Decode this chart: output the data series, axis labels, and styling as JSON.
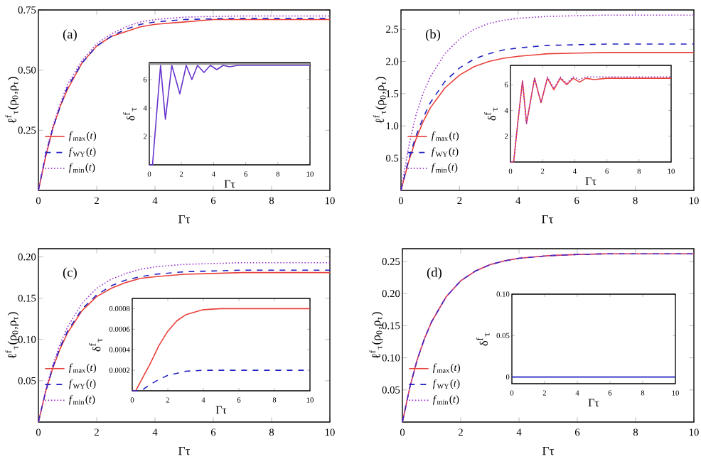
{
  "chart_data": [
    {
      "type": "line",
      "xlabel": "Γτ",
      "ylabel": "ℓ$^{f}$$_{τ}$(ρ$_{0}$,ρ$_{τ}$)",
      "annotations": [
        "(a)"
      ],
      "legend": "bottom left",
      "xlim": [
        0,
        10
      ],
      "ylim": [
        0,
        0.75
      ],
      "xticks": [
        0,
        2,
        4,
        6,
        8,
        10
      ],
      "yticks": [
        0.25,
        {
          "value": 0.5,
          "label": "0.50"
        },
        0.75
      ],
      "x": [
        0,
        0.25,
        0.5,
        0.75,
        1,
        1.5,
        2,
        2.5,
        3,
        3.5,
        4,
        5,
        6,
        7,
        8,
        10
      ],
      "series": [
        {
          "name": "*f*$_{max}$(*t*)",
          "color": "#e8413a",
          "line_style": "solid",
          "values": [
            0,
            0.14,
            0.26,
            0.35,
            0.42,
            0.53,
            0.6,
            0.64,
            0.66,
            0.68,
            0.69,
            0.7,
            0.71,
            0.71,
            0.71,
            0.71
          ]
        },
        {
          "name": "*f*$_{WY}$(*t*)",
          "color": "#2020c0",
          "line_style": "dashed",
          "values": [
            0,
            0.15,
            0.26,
            0.35,
            0.43,
            0.53,
            0.6,
            0.64,
            0.67,
            0.69,
            0.7,
            0.71,
            0.713,
            0.715,
            0.715,
            0.715
          ]
        },
        {
          "name": "*f*$_{min}$(*t*)",
          "color": "#9933cc",
          "line_style": "dotted",
          "values": [
            0,
            0.15,
            0.27,
            0.36,
            0.44,
            0.54,
            0.61,
            0.65,
            0.68,
            0.7,
            0.71,
            0.72,
            0.723,
            0.725,
            0.725,
            0.725
          ]
        }
      ]
    },
    {
      "type": "line",
      "xlabel": "Γτ",
      "ylabel": "δ$^{f}$$_{τ}$",
      "xlim": [
        0,
        10
      ],
      "ylim": [
        0,
        7.2
      ],
      "xticks": [
        0,
        2,
        4,
        6,
        8,
        10
      ],
      "yticks": [
        2,
        4,
        6
      ],
      "x": [
        0,
        0.2,
        0.45,
        0.7,
        1.0,
        1.4,
        1.9,
        2.3,
        2.65,
        3.0,
        3.4,
        3.8,
        4.2,
        4.6,
        5.0,
        5.5,
        6,
        10
      ],
      "ref_lines": [
        {
          "axis": "y",
          "value": 7.1,
          "color": "#999999"
        }
      ],
      "series": [
        {
          "color": "#6633cc",
          "line_style": "solid",
          "values": [
            0,
            0,
            3.5,
            7,
            3.2,
            7,
            5,
            7,
            6,
            7,
            6.5,
            7,
            6.7,
            7,
            6.9,
            7,
            7,
            7
          ]
        }
      ]
    },
    {
      "type": "line",
      "xlabel": "Γτ",
      "ylabel": "ℓ$^{f}$$_{τ}$(ρ$_{0}$,ρ$_{τ}$)",
      "annotations": [
        "(b)"
      ],
      "legend": "bottom left",
      "xlim": [
        0,
        10
      ],
      "ylim": [
        0,
        2.8
      ],
      "xticks": [
        0,
        2,
        4,
        6,
        8,
        10
      ],
      "yticks": [
        0.5,
        {
          "value": 1,
          "label": "1.0"
        },
        1.5,
        {
          "value": 2,
          "label": "2.0"
        },
        2.5
      ],
      "x": [
        0,
        0.25,
        0.5,
        0.75,
        1,
        1.5,
        2,
        2.5,
        3,
        3.5,
        4,
        5,
        6,
        7,
        8,
        10
      ],
      "series": [
        {
          "name": "*f*$_{max}$(*t*)",
          "color": "#e8413a",
          "line_style": "solid",
          "values": [
            0,
            0.43,
            0.78,
            1.06,
            1.28,
            1.59,
            1.79,
            1.92,
            2.0,
            2.05,
            2.08,
            2.12,
            2.13,
            2.14,
            2.14,
            2.14
          ]
        },
        {
          "name": "*f*$_{WY}$(*t*)",
          "color": "#2020c0",
          "line_style": "dashed",
          "values": [
            0,
            0.46,
            0.83,
            1.12,
            1.36,
            1.69,
            1.9,
            2.04,
            2.12,
            2.18,
            2.21,
            2.25,
            2.26,
            2.27,
            2.27,
            2.27
          ]
        },
        {
          "name": "*f*$_{min}$(*t*)",
          "color": "#9933cc",
          "line_style": "dotted",
          "values": [
            0,
            0.65,
            1.15,
            1.5,
            1.76,
            2.12,
            2.35,
            2.5,
            2.59,
            2.64,
            2.67,
            2.7,
            2.71,
            2.72,
            2.72,
            2.72
          ]
        }
      ]
    },
    {
      "type": "line",
      "xlabel": "Γτ",
      "ylabel": "δ$^{f}$$_{τ}$",
      "xlim": [
        0,
        10
      ],
      "ylim": [
        0,
        7.5
      ],
      "xticks": [
        0,
        2,
        4,
        6,
        8,
        10
      ],
      "yticks": [
        2,
        4,
        6
      ],
      "x": [
        0,
        0.2,
        0.45,
        0.75,
        1.0,
        1.5,
        1.9,
        2.3,
        2.7,
        3.1,
        3.5,
        3.9,
        4.3,
        4.7,
        5.2,
        6,
        10
      ],
      "series": [
        {
          "color": "#e8413a",
          "line_style": "solid",
          "values": [
            0,
            0,
            3,
            6.3,
            3.0,
            6.5,
            4.6,
            6.5,
            5.6,
            6.5,
            6.0,
            6.5,
            6.2,
            6.5,
            6.4,
            6.5,
            6.5
          ]
        },
        {
          "color": "#9933cc",
          "line_style": "dotted",
          "values": [
            0,
            0,
            3,
            6.3,
            3.0,
            6.5,
            4.6,
            6.6,
            5.7,
            6.6,
            6.1,
            6.6,
            6.4,
            6.6,
            6.6,
            6.6,
            6.6
          ]
        }
      ]
    },
    {
      "type": "line",
      "xlabel": "Γτ",
      "ylabel": "ℓ$^{f}$$_{τ}$(ρ$_{0}$,ρ$_{τ}$)",
      "annotations": [
        "(c)"
      ],
      "legend": "bottom left",
      "xlim": [
        0,
        10
      ],
      "ylim": [
        0,
        0.21
      ],
      "xticks": [
        0,
        2,
        4,
        6,
        8,
        10
      ],
      "yticks": [
        0.05,
        {
          "value": 0.1,
          "label": "0.10"
        },
        0.15,
        {
          "value": 0.2,
          "label": "0.20"
        }
      ],
      "x": [
        0,
        0.25,
        0.5,
        0.75,
        1,
        1.5,
        2,
        2.5,
        3,
        3.5,
        4,
        5,
        6,
        7,
        8,
        10
      ],
      "series": [
        {
          "name": "*f*$_{max}$(*t*)",
          "color": "#e8413a",
          "line_style": "solid",
          "values": [
            0,
            0.037,
            0.066,
            0.089,
            0.108,
            0.135,
            0.152,
            0.162,
            0.169,
            0.174,
            0.176,
            0.179,
            0.18,
            0.181,
            0.181,
            0.181
          ]
        },
        {
          "name": "*f*$_{WY}$(*t*)",
          "color": "#2020c0",
          "line_style": "dashed",
          "values": [
            0,
            0.037,
            0.067,
            0.091,
            0.11,
            0.137,
            0.154,
            0.165,
            0.172,
            0.176,
            0.179,
            0.182,
            0.183,
            0.184,
            0.184,
            0.184
          ]
        },
        {
          "name": "*f*$_{min}$(*t*)",
          "color": "#9933cc",
          "line_style": "dotted",
          "values": [
            0,
            0.039,
            0.07,
            0.095,
            0.115,
            0.144,
            0.162,
            0.173,
            0.18,
            0.185,
            0.188,
            0.191,
            0.192,
            0.193,
            0.193,
            0.193
          ]
        }
      ]
    },
    {
      "type": "line",
      "xlabel": "Γτ",
      "ylabel": "δ$^{f}$$_{τ}$",
      "xlim": [
        0,
        10
      ],
      "ylim": [
        0,
        0.0009
      ],
      "xticks": [
        0,
        2,
        4,
        6,
        8,
        10
      ],
      "yticks": [
        0.0002,
        0.0004,
        0.0006,
        0.0008
      ],
      "x": [
        0,
        0.2,
        0.5,
        1,
        1.5,
        2,
        2.5,
        3,
        4,
        5,
        6,
        10
      ],
      "series": [
        {
          "color": "#e8413a",
          "line_style": "solid",
          "values": [
            0,
            0,
            0.0001,
            0.00026,
            0.00044,
            0.00058,
            0.00068,
            0.00074,
            0.00079,
            0.0008,
            0.0008,
            0.0008
          ]
        },
        {
          "color": "#2020c0",
          "line_style": "dashed",
          "values": [
            0,
            0,
            0,
            6e-05,
            0.00011,
            0.00015,
            0.00017,
            0.00019,
            0.0002,
            0.0002,
            0.0002,
            0.0002
          ]
        }
      ]
    },
    {
      "type": "line",
      "xlabel": "Γτ",
      "ylabel": "ℓ$^{f}$$_{τ}$(ρ$_{0}$,ρ$_{τ}$)",
      "annotations": [
        "(d)"
      ],
      "legend": "bottom left",
      "xlim": [
        0,
        10
      ],
      "ylim": [
        0,
        0.27
      ],
      "xticks": [
        0,
        2,
        4,
        6,
        8,
        10
      ],
      "yticks": [
        0.05,
        {
          "value": 0.1,
          "label": "0.10"
        },
        0.15,
        {
          "value": 0.2,
          "label": "0.20"
        },
        0.25
      ],
      "x": [
        0,
        0.25,
        0.5,
        0.75,
        1,
        1.5,
        2,
        2.5,
        3,
        3.5,
        4,
        5,
        6,
        7,
        8,
        10
      ],
      "series": [
        {
          "name": "*f*$_{max}$(*t*)",
          "color": "#e8413a",
          "line_style": "solid",
          "values": [
            0,
            0.053,
            0.096,
            0.129,
            0.156,
            0.195,
            0.22,
            0.235,
            0.245,
            0.251,
            0.255,
            0.259,
            0.261,
            0.262,
            0.262,
            0.262
          ]
        },
        {
          "name": "*f*$_{WY}$(*t*)",
          "color": "#2020c0",
          "line_style": "dashed",
          "values": [
            0,
            0.053,
            0.096,
            0.129,
            0.156,
            0.195,
            0.22,
            0.235,
            0.245,
            0.251,
            0.255,
            0.259,
            0.261,
            0.262,
            0.262,
            0.262
          ]
        },
        {
          "name": "*f*$_{min}$(*t*)",
          "color": "#9933cc",
          "line_style": "dotted",
          "values": [
            0,
            0.053,
            0.096,
            0.129,
            0.156,
            0.195,
            0.22,
            0.235,
            0.245,
            0.251,
            0.255,
            0.259,
            0.261,
            0.262,
            0.262,
            0.262
          ]
        }
      ]
    },
    {
      "type": "line",
      "xlabel": "Γτ",
      "ylabel": "δ$^{f}$$_{τ}$",
      "xlim": [
        0,
        10
      ],
      "ylim": [
        -0.008,
        0.1
      ],
      "xticks": [
        0,
        2,
        4,
        6,
        8,
        10
      ],
      "yticks": [
        0,
        0.05,
        {
          "value": 0.1,
          "label": "0.10"
        }
      ],
      "x": [
        0,
        10
      ],
      "series": [
        {
          "color": "#2020c0",
          "line_style": "solid",
          "values": [
            0,
            0
          ]
        }
      ]
    }
  ]
}
